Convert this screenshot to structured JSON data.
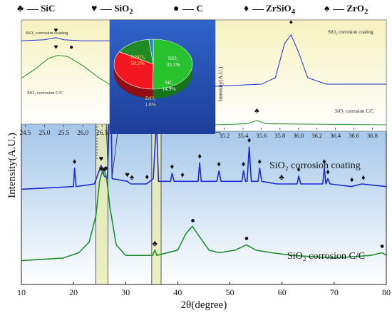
{
  "legend": [
    {
      "symbol": "♣",
      "label": "SiC"
    },
    {
      "symbol": "♥",
      "label": "SiO",
      "sub": "2"
    },
    {
      "symbol": "●",
      "label": "C"
    },
    {
      "symbol": "♦",
      "label": "ZrSiO",
      "sub": "4"
    },
    {
      "symbol": "♠",
      "label": "ZrO",
      "sub": "2"
    }
  ],
  "chart_data": [
    {
      "type": "line",
      "xlabel": "2θ(degree)",
      "ylabel": "Intensity(A.U.)",
      "xlim": [
        10,
        80
      ],
      "xticks": [
        10,
        20,
        30,
        40,
        50,
        60,
        70,
        80
      ],
      "series": [
        {
          "name": "SiO₂ corrosion coating",
          "color": "#1a2bd6",
          "points": [
            [
              10,
              0.36
            ],
            [
              20,
              0.37
            ],
            [
              20.2,
              0.44
            ],
            [
              20.5,
              0.37
            ],
            [
              24,
              0.38
            ],
            [
              25.3,
              0.45
            ],
            [
              25.9,
              0.41
            ],
            [
              26.5,
              0.4
            ],
            [
              27.1,
              0.8
            ],
            [
              27.4,
              0.4
            ],
            [
              30.3,
              0.39
            ],
            [
              31,
              0.38
            ],
            [
              34,
              0.38
            ],
            [
              35.3,
              0.4
            ],
            [
              35.9,
              0.62
            ],
            [
              36.3,
              0.39
            ],
            [
              38.6,
              0.39
            ],
            [
              38.9,
              0.42
            ],
            [
              39.3,
              0.39
            ],
            [
              41,
              0.39
            ],
            [
              43.9,
              0.39
            ],
            [
              44.2,
              0.46
            ],
            [
              44.5,
              0.39
            ],
            [
              47.5,
              0.39
            ],
            [
              47.9,
              0.43
            ],
            [
              48.3,
              0.39
            ],
            [
              52.3,
              0.39
            ],
            [
              52.6,
              0.43
            ],
            [
              53,
              0.39
            ],
            [
              53.3,
              0.39
            ],
            [
              53.7,
              0.52
            ],
            [
              54.1,
              0.39
            ],
            [
              55.4,
              0.39
            ],
            [
              55.7,
              0.44
            ],
            [
              56.1,
              0.39
            ],
            [
              59,
              0.38
            ],
            [
              62.9,
              0.38
            ],
            [
              63.2,
              0.41
            ],
            [
              63.6,
              0.38
            ],
            [
              67.8,
              0.38
            ],
            [
              68.1,
              0.44
            ],
            [
              68.4,
              0.38
            ],
            [
              68.8,
              0.4
            ],
            [
              69.2,
              0.38
            ],
            [
              73.3,
              0.37
            ],
            [
              75.3,
              0.38
            ],
            [
              80,
              0.37
            ]
          ]
        },
        {
          "name": "SiO₂ corrosion C/C",
          "color": "#1e8f2a",
          "points": [
            [
              10,
              0.09
            ],
            [
              18,
              0.1
            ],
            [
              21,
              0.12
            ],
            [
              23,
              0.16
            ],
            [
              24.3,
              0.26
            ],
            [
              25.0,
              0.39
            ],
            [
              25.7,
              0.44
            ],
            [
              26.3,
              0.41
            ],
            [
              27.0,
              0.29
            ],
            [
              28.2,
              0.15
            ],
            [
              30,
              0.11
            ],
            [
              33,
              0.11
            ],
            [
              35.2,
              0.11
            ],
            [
              35.6,
              0.13
            ],
            [
              36,
              0.11
            ],
            [
              40,
              0.13
            ],
            [
              41.5,
              0.19
            ],
            [
              42.8,
              0.22
            ],
            [
              44.2,
              0.18
            ],
            [
              46,
              0.13
            ],
            [
              48,
              0.12
            ],
            [
              51,
              0.13
            ],
            [
              53.2,
              0.15
            ],
            [
              55,
              0.13
            ],
            [
              58,
              0.12
            ],
            [
              62,
              0.11
            ],
            [
              70,
              0.1
            ],
            [
              77,
              0.11
            ],
            [
              79.2,
              0.12
            ],
            [
              80,
              0.11
            ]
          ]
        }
      ],
      "annotations": [
        {
          "text": "SiO₂ corrosion coating",
          "x": 68,
          "y": 0.53
        },
        {
          "text": "SiO₂ corrosion C/C",
          "x": 69,
          "y": 0.23
        }
      ],
      "markers": {
        "coating": [
          {
            "symbol": "♦",
            "x": 20.2
          },
          {
            "symbol": "♥",
            "x": 25.3
          },
          {
            "symbol": "●",
            "x": 25.9
          },
          {
            "symbol": "♦",
            "x": 27.1
          },
          {
            "symbol": "♥",
            "x": 30.3
          },
          {
            "symbol": "♠",
            "x": 31.2
          },
          {
            "symbol": "♦",
            "x": 34.1
          },
          {
            "symbol": "♦",
            "x": 35.9
          },
          {
            "symbol": "♦",
            "x": 38.9
          },
          {
            "symbol": "♦",
            "x": 40.9
          },
          {
            "symbol": "♦",
            "x": 44.2
          },
          {
            "symbol": "♦",
            "x": 47.9
          },
          {
            "symbol": "♦",
            "x": 52.6
          },
          {
            "symbol": "♦",
            "x": 53.7
          },
          {
            "symbol": "♦",
            "x": 55.7
          },
          {
            "symbol": "♣",
            "x": 59.9
          },
          {
            "symbol": "♦",
            "x": 63.2
          },
          {
            "symbol": "♦",
            "x": 68.1
          },
          {
            "symbol": "♦",
            "x": 68.8
          },
          {
            "symbol": "♦",
            "x": 73.4
          },
          {
            "symbol": "♦",
            "x": 75.6
          }
        ],
        "cc": [
          {
            "symbol": "♥",
            "x": 25.3
          },
          {
            "symbol": "●",
            "x": 26.2
          },
          {
            "symbol": "♣",
            "x": 35.6
          },
          {
            "symbol": "●",
            "x": 42.9
          },
          {
            "symbol": "●",
            "x": 53.2
          },
          {
            "symbol": "●",
            "x": 79.2
          }
        ]
      },
      "highlight_ranges": [
        [
          24.3,
          26.6
        ],
        [
          35.0,
          36.8
        ]
      ]
    },
    {
      "type": "line",
      "xlim": [
        24.4,
        26.7
      ],
      "xticks": [
        24.5,
        25.0,
        25.5,
        26.0,
        26.5
      ],
      "series": [
        {
          "name": "SiO₂ corrosion coating",
          "color": "#1a2bd6",
          "points": [
            [
              24.4,
              0.8
            ],
            [
              25.0,
              0.81
            ],
            [
              25.3,
              0.83
            ],
            [
              25.5,
              0.81
            ],
            [
              26.0,
              0.8
            ],
            [
              26.7,
              0.8
            ]
          ]
        },
        {
          "name": "SiO₂ corrosion C/C",
          "color": "#1e8f2a",
          "points": [
            [
              24.4,
              0.44
            ],
            [
              24.8,
              0.54
            ],
            [
              25.1,
              0.63
            ],
            [
              25.35,
              0.66
            ],
            [
              25.6,
              0.65
            ],
            [
              26.0,
              0.56
            ],
            [
              26.4,
              0.45
            ],
            [
              26.7,
              0.38
            ]
          ]
        }
      ],
      "annotations": [
        {
          "text": "SiO₂ corrosion coating",
          "x": 24.6,
          "y": 0.92
        },
        {
          "text": "SiO₂ corrosion C/C",
          "x": 24.6,
          "y": 0.12
        }
      ],
      "markers": [
        {
          "symbol": "♥",
          "x": 25.3,
          "y": 0.88
        },
        {
          "symbol": "♥",
          "x": 25.3,
          "y": 0.72
        },
        {
          "symbol": "●",
          "x": 25.7,
          "y": 0.72
        }
      ]
    },
    {
      "type": "line",
      "ylabel": "Intensity(A.U.)",
      "xlim": [
        35.1,
        36.95
      ],
      "xticks": [
        35.2,
        35.4,
        35.6,
        35.8,
        36.0,
        36.2,
        36.4,
        36.6,
        36.8
      ],
      "series": [
        {
          "name": "SiO₂ corrosion coating",
          "color": "#1a2bd6",
          "points": [
            [
              35.1,
              0.38
            ],
            [
              35.6,
              0.4
            ],
            [
              35.75,
              0.46
            ],
            [
              35.85,
              0.78
            ],
            [
              35.92,
              0.86
            ],
            [
              36.0,
              0.7
            ],
            [
              36.1,
              0.46
            ],
            [
              36.3,
              0.4
            ],
            [
              36.95,
              0.4
            ]
          ]
        },
        {
          "name": "SiO₂ corrosion C/C",
          "color": "#1e8f2a",
          "points": [
            [
              35.1,
              0.02
            ],
            [
              35.45,
              0.03
            ],
            [
              35.55,
              0.06
            ],
            [
              35.65,
              0.03
            ],
            [
              36.95,
              0.02
            ]
          ]
        }
      ],
      "annotations": [
        {
          "text": "SiO₂ corrosion coating",
          "x": 36.4,
          "y": 0.87
        },
        {
          "text": "SiO₂ corrosion C/C",
          "x": 36.6,
          "y": 0.17
        }
      ],
      "markers": [
        {
          "symbol": "♦",
          "x": 35.92,
          "y": 0.96
        },
        {
          "symbol": "♣",
          "x": 35.55,
          "y": 0.13
        }
      ]
    },
    {
      "type": "pie",
      "slices": [
        {
          "label": "ZrSiO₄",
          "value": 50.2,
          "text": "50.2%",
          "color": "#27c22d"
        },
        {
          "label": "SiO₂",
          "value": 33.1,
          "text": "33.1%",
          "color": "#f2171e"
        },
        {
          "label": "SiC",
          "value": 14.9,
          "text": "14.9%",
          "color": "#1f8a24"
        },
        {
          "label": "ZrO₂",
          "value": 1.8,
          "text": "1.8%",
          "color": "#2a7ed8"
        }
      ]
    }
  ]
}
